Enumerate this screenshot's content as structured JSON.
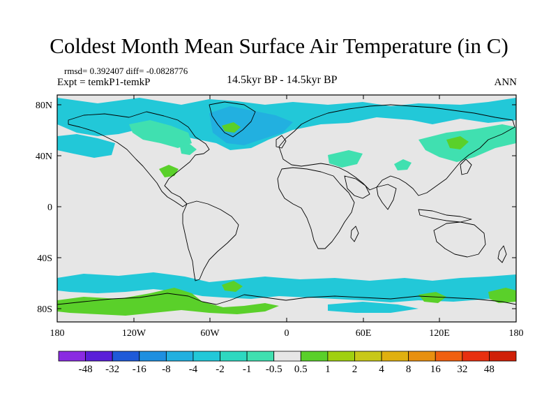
{
  "title": "Coldest Month Mean Surface Air Temperature (in C)",
  "stats_text": "rmsd= 0.392407 diff= -0.0828776",
  "expt_text": "Expt = temkP1-temkP",
  "period_text": "14.5kyr BP - 14.5kyr BP",
  "season": "ANN",
  "lat_ticks": [
    "80N",
    "40N",
    "0",
    "40S",
    "80S"
  ],
  "lon_ticks": [
    "180",
    "120W",
    "60W",
    "0",
    "60E",
    "120E",
    "180"
  ],
  "colorbar": {
    "labels": [
      "-48",
      "-32",
      "-16",
      "-8",
      "-4",
      "-2",
      "-1",
      "-0.5",
      "0.5",
      "1",
      "2",
      "4",
      "8",
      "16",
      "32",
      "48"
    ],
    "colors": [
      "#8a2be2",
      "#5a1fd8",
      "#1f5ad8",
      "#1e8fe0",
      "#22b0e0",
      "#22c8d8",
      "#2ed8c0",
      "#40e0b0",
      "#e6e6e6",
      "#5ad02a",
      "#a0d010",
      "#c8c818",
      "#e0b010",
      "#e89010",
      "#f06010",
      "#e83010",
      "#d02008"
    ]
  },
  "colors": {
    "background": "#e6e6e6",
    "cool_light": "#22c8d8",
    "cool_mid": "#22b0e0",
    "cool_pale": "#40e0b0",
    "warm": "#5ad02a",
    "coast": "#000000"
  }
}
